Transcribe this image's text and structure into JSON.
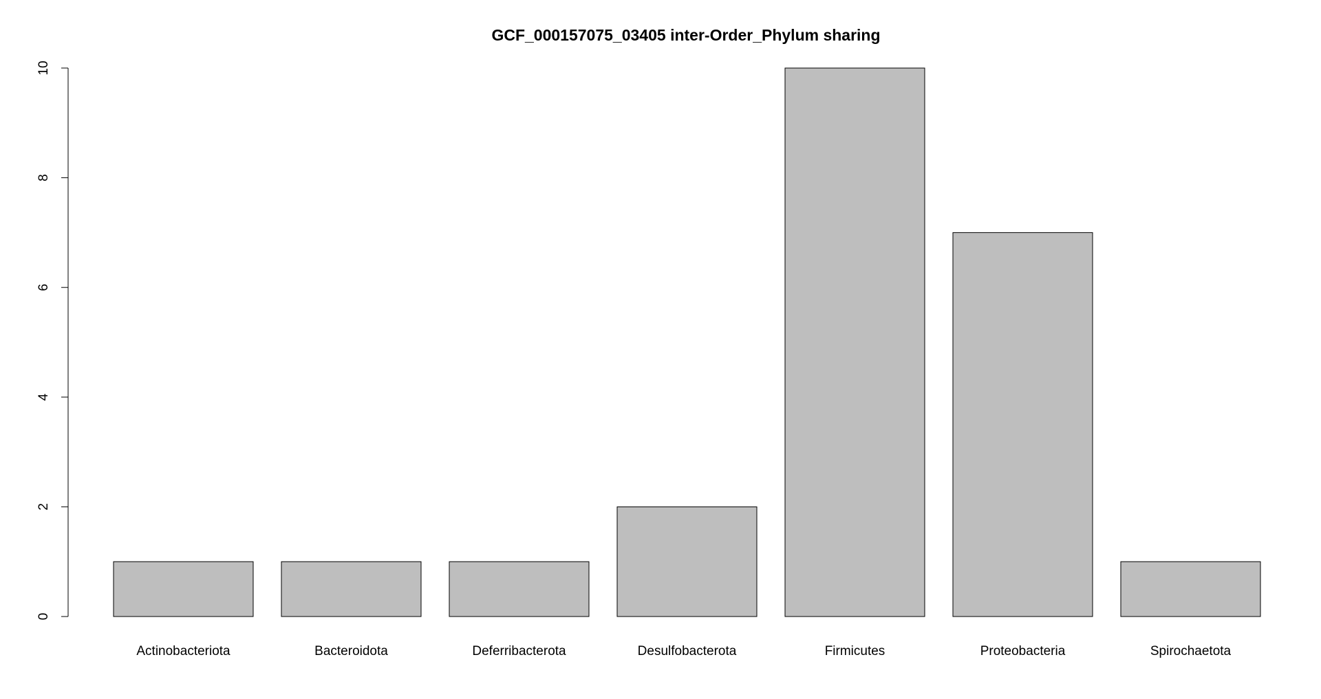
{
  "chart_data": {
    "type": "bar",
    "title": "GCF_000157075_03405 inter-Order_Phylum sharing",
    "xlabel": "",
    "ylabel": "",
    "categories": [
      "Actinobacteriota",
      "Bacteroidota",
      "Deferribacterota",
      "Desulfobacterota",
      "Firmicutes",
      "Proteobacteria",
      "Spirochaetota"
    ],
    "values": [
      1,
      1,
      1,
      2,
      10,
      7,
      1
    ],
    "ylim": [
      0,
      10
    ],
    "yticks": [
      "0",
      "2",
      "4",
      "6",
      "8",
      "10"
    ],
    "bar_color": "#bebebe",
    "grid": false,
    "legend": "none"
  }
}
